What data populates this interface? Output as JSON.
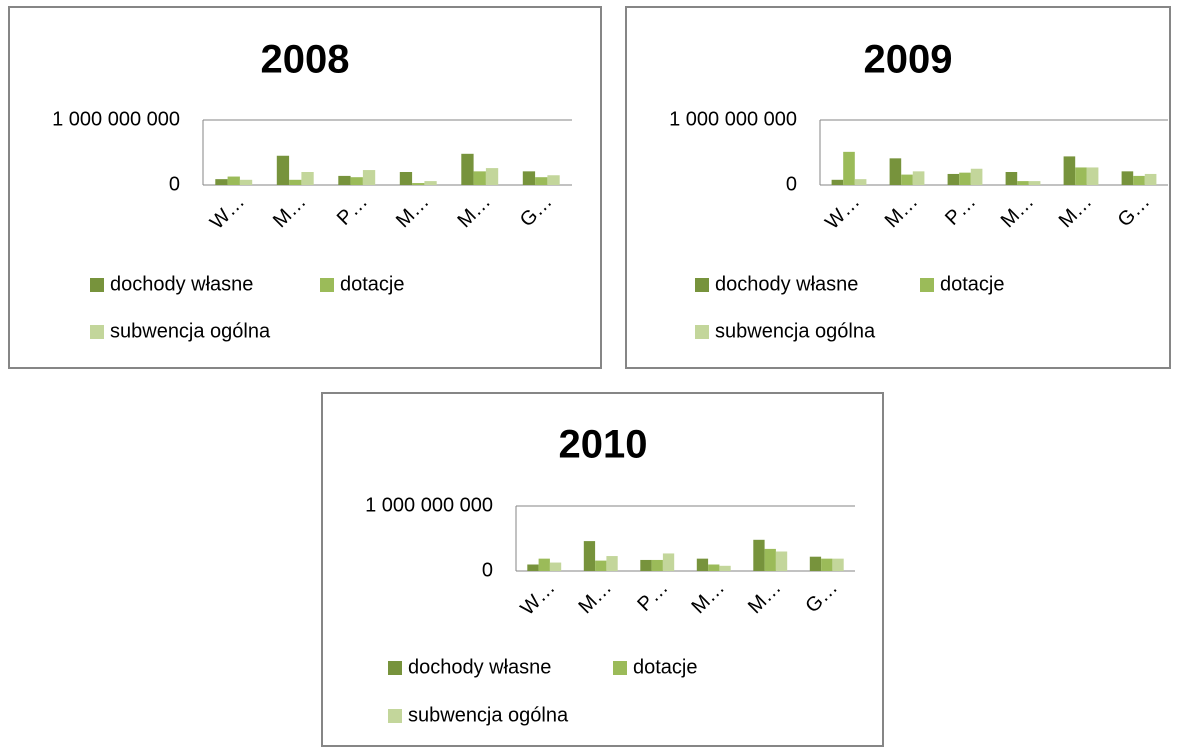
{
  "chart_data": [
    {
      "type": "bar",
      "title": "2008",
      "categories": [
        "W…",
        "M…",
        "P…",
        "M…",
        "M…",
        "G…"
      ],
      "series": [
        {
          "name": "dochody własne",
          "color": "#77933c",
          "values": [
            90000000,
            450000000,
            140000000,
            200000000,
            480000000,
            210000000
          ]
        },
        {
          "name": "dotacje",
          "color": "#9bbb59",
          "values": [
            130000000,
            80000000,
            120000000,
            30000000,
            210000000,
            120000000
          ]
        },
        {
          "name": "subwencja ogólna",
          "color": "#c3d69b",
          "values": [
            80000000,
            200000000,
            230000000,
            60000000,
            260000000,
            150000000
          ]
        }
      ],
      "ylim": [
        0,
        1000000000
      ],
      "yticks": [
        0,
        {
          "value": 1000000000,
          "label": "1 000 000 000"
        }
      ],
      "grid": true
    },
    {
      "type": "bar",
      "title": "2009",
      "categories": [
        "W…",
        "M…",
        "P…",
        "M…",
        "M…",
        "G…"
      ],
      "series": [
        {
          "name": "dochody własne",
          "color": "#77933c",
          "values": [
            80000000,
            410000000,
            170000000,
            200000000,
            440000000,
            210000000
          ]
        },
        {
          "name": "dotacje",
          "color": "#9bbb59",
          "values": [
            510000000,
            160000000,
            190000000,
            60000000,
            270000000,
            140000000
          ]
        },
        {
          "name": "subwencja ogólna",
          "color": "#c3d69b",
          "values": [
            90000000,
            210000000,
            250000000,
            60000000,
            270000000,
            170000000
          ]
        }
      ],
      "ylim": [
        0,
        1000000000
      ],
      "yticks": [
        0,
        {
          "value": 1000000000,
          "label": "1 000 000 000"
        }
      ],
      "grid": true
    },
    {
      "type": "bar",
      "title": "2010",
      "categories": [
        "W…",
        "M…",
        "P…",
        "M…",
        "M…",
        "G…"
      ],
      "series": [
        {
          "name": "dochody własne",
          "color": "#77933c",
          "values": [
            100000000,
            460000000,
            170000000,
            190000000,
            480000000,
            220000000
          ]
        },
        {
          "name": "dotacje",
          "color": "#9bbb59",
          "values": [
            190000000,
            160000000,
            170000000,
            100000000,
            340000000,
            190000000
          ]
        },
        {
          "name": "subwencja ogólna",
          "color": "#c3d69b",
          "values": [
            130000000,
            230000000,
            270000000,
            80000000,
            300000000,
            190000000
          ]
        }
      ],
      "ylim": [
        0,
        1000000000
      ],
      "yticks": [
        0,
        {
          "value": 1000000000,
          "label": "1 000 000 000"
        }
      ],
      "grid": true
    }
  ]
}
